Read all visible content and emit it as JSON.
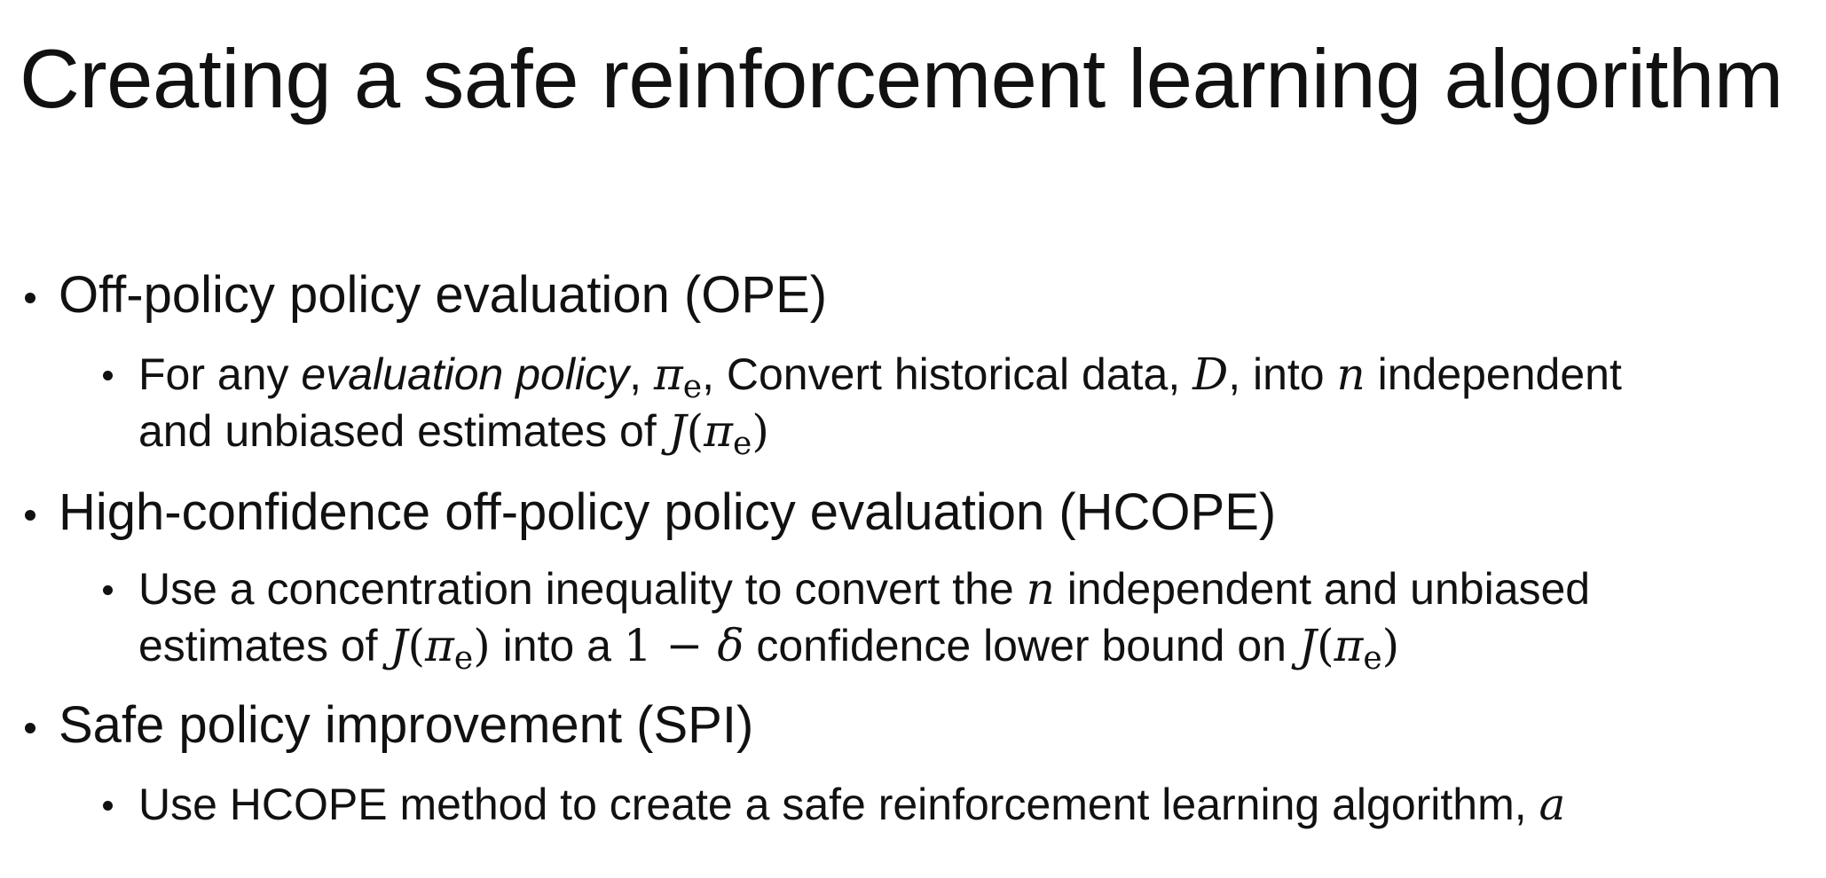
{
  "title": "Creating a safe reinforcement learning algorithm",
  "sections": [
    {
      "heading": "Off-policy policy evaluation (OPE)",
      "sub": {
        "t1": "For any ",
        "em1": "evaluation policy",
        "t2": ", ",
        "pi": "π",
        "pisub": "e",
        "t3": ", Convert historical data, ",
        "D": "D",
        "t4": ", into ",
        "n": "n",
        "t5": " independent",
        "t6": "and unbiased estimates of ",
        "J": "J",
        "lp": "(",
        "pi2": "π",
        "pisub2": "e",
        "rp": ")"
      }
    },
    {
      "heading": "High-confidence off-policy policy evaluation (HCOPE)",
      "sub": {
        "t1": "Use a concentration inequality to convert the ",
        "n": "n",
        "t2": " independent and unbiased",
        "t3": "estimates of ",
        "J1": "J",
        "lp1": "(",
        "pi1": "π",
        "pisub1": "e",
        "rp1": ")",
        "t4": " into a ",
        "one": "1 − ",
        "delta": "δ",
        "t5": " confidence lower bound on ",
        "J2": "J",
        "lp2": "(",
        "pi2": "π",
        "pisub2": "e",
        "rp2": ")"
      }
    },
    {
      "heading": "Safe policy improvement (SPI)",
      "sub": {
        "t1": "Use HCOPE method to create a safe reinforcement learning algorithm, ",
        "a": "a"
      }
    }
  ]
}
